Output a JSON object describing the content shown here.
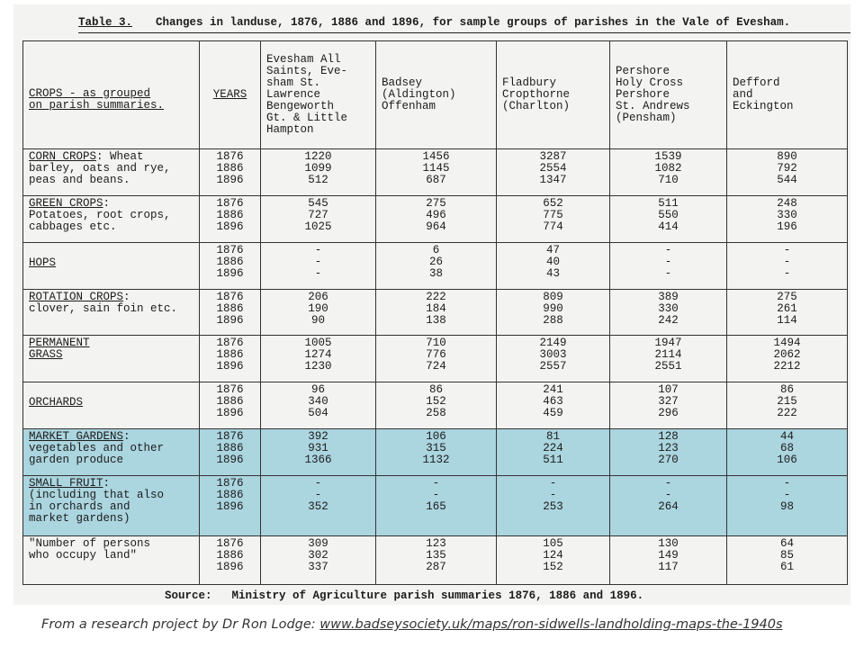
{
  "table_title": {
    "number": "Table 3.",
    "text": "Changes in landuse, 1876, 1886 and 1896, for sample groups of parishes in the Vale of Evesham."
  },
  "headers": {
    "crops": "CROPS - as grouped\non parish summaries.",
    "years": "YEARS",
    "parishes": [
      "Evesham All\nSaints, Eve-\nsham St.\nLawrence\nBengeworth\nGt. & Little\nHampton",
      "Badsey\n(Aldington)\nOffenham",
      "Fladbury\nCropthorne\n(Charlton)",
      "Pershore\nHoly Cross\nPershore\nSt. Andrews\n(Pensham)",
      "Defford\nand\nEckington"
    ]
  },
  "rows": [
    {
      "title": "CORN CROPS",
      "desc": ": Wheat\nbarley, oats and rye,\npeas and beans.",
      "years": "1876\n1886\n1896",
      "values": [
        "1220\n1099\n512",
        "1456\n1145\n687",
        "3287\n2554\n1347",
        "1539\n1082\n710",
        "890\n792\n544"
      ]
    },
    {
      "title": "GREEN CROPS",
      "desc": ":\nPotatoes, root crops,\ncabbages etc.",
      "years": "1876\n1886\n1896",
      "values": [
        "545\n727\n1025",
        "275\n496\n964",
        "652\n775\n774",
        "511\n550\n414",
        "248\n330\n196"
      ]
    },
    {
      "title": "HOPS",
      "desc": "",
      "years": "1876\n1886\n1896",
      "values": [
        "-\n-\n-",
        "6\n26\n38",
        "47\n40\n43",
        "-\n-\n-",
        "-\n-\n-"
      ]
    },
    {
      "title": "ROTATION CROPS",
      "desc": ":\nclover, sain foin etc.",
      "years": "1876\n1886\n1896",
      "values": [
        "206\n190\n90",
        "222\n184\n138",
        "809\n990\n288",
        "389\n330\n242",
        "275\n261\n114"
      ]
    },
    {
      "title": "PERMANENT",
      "desc": "\n      GRASS",
      "years": "1876\n1886\n1896",
      "values": [
        "1005\n1274\n1230",
        "710\n776\n724",
        "2149\n3003\n2557",
        "1947\n2114\n2551",
        "1494\n2062\n2212"
      ]
    },
    {
      "title": "ORCHARDS",
      "desc": "",
      "years": "1876\n1886\n1896",
      "values": [
        "96\n340\n504",
        "86\n152\n258",
        "241\n463\n459",
        "107\n327\n296",
        "86\n215\n222"
      ]
    },
    {
      "title": "MARKET GARDENS",
      "desc": ":\nvegetables and other\ngarden produce",
      "years": "1876\n1886\n1896",
      "values": [
        "392\n931\n1366",
        "106\n315\n1132",
        "81\n224\n511",
        "128\n123\n270",
        "44\n68\n106"
      ]
    },
    {
      "title": "SMALL FRUIT",
      "desc": ":\n(including that also\n in orchards and\nmarket gardens)",
      "years": "1876\n1886\n1896",
      "values": [
        "-\n-\n352",
        "-\n-\n165",
        "-\n-\n253",
        "-\n-\n264",
        "-\n-\n98"
      ]
    },
    {
      "title": "",
      "desc": "\"Number of persons\n  who occupy land\"",
      "years": "1876\n1886\n1896",
      "values": [
        "309\n302\n337",
        "123\n135\n287",
        "105\n124\n152",
        "130\n149\n117",
        "64\n85\n61"
      ]
    }
  ],
  "source": {
    "label": "Source:",
    "text": "Ministry of Agriculture parish summaries 1876, 1886 and 1896."
  },
  "caption": {
    "prefix": "From a research project by Dr Ron Lodge: ",
    "link": "www.badseysociety.uk/maps/ron-sidwells-landholding-maps-the-1940s"
  },
  "colors": {
    "highlight": "#abd5df",
    "paper": "#f3f3f1"
  }
}
